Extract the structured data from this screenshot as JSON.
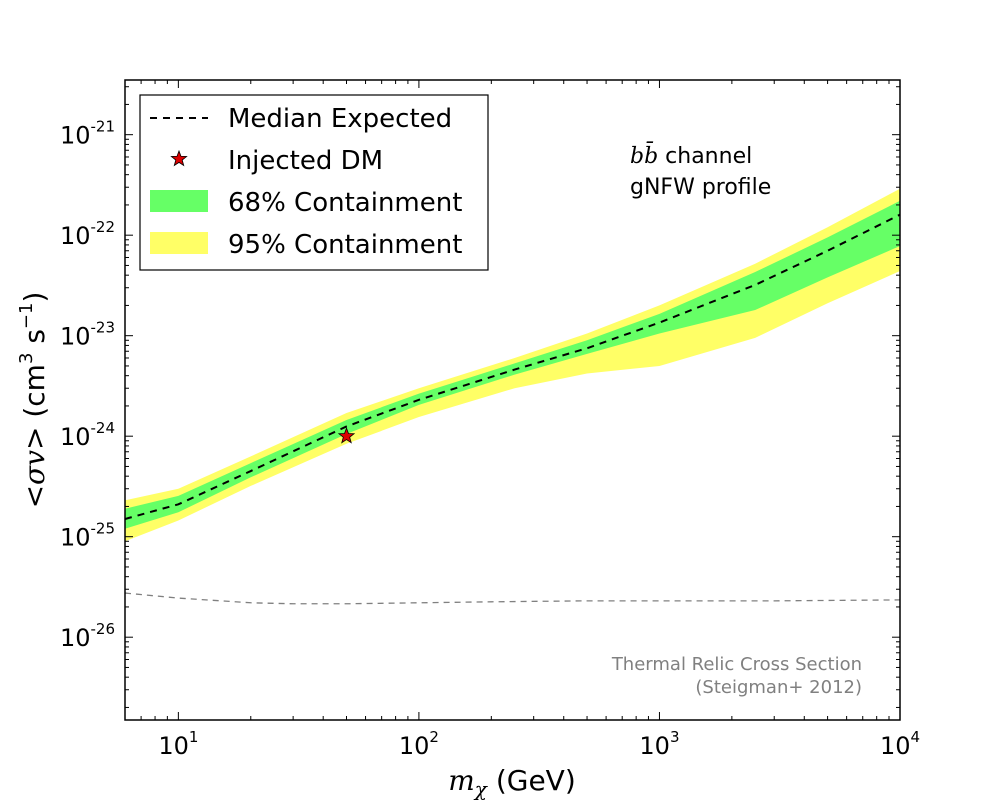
{
  "chart_data": {
    "type": "line",
    "x_scale": "log",
    "y_scale": "log",
    "xlim": [
      6,
      10000
    ],
    "ylim": [
      1.5e-27,
      3.5e-21
    ],
    "x_ticks": [
      {
        "base": "10",
        "exp": "1",
        "value": 10
      },
      {
        "base": "10",
        "exp": "2",
        "value": 100
      },
      {
        "base": "10",
        "exp": "3",
        "value": 1000
      },
      {
        "base": "10",
        "exp": "4",
        "value": 10000
      }
    ],
    "y_ticks": [
      {
        "base": "10",
        "exp": "-26",
        "value": 1e-26
      },
      {
        "base": "10",
        "exp": "-25",
        "value": 1e-25
      },
      {
        "base": "10",
        "exp": "-24",
        "value": 1e-24
      },
      {
        "base": "10",
        "exp": "-23",
        "value": 1e-23
      },
      {
        "base": "10",
        "exp": "-22",
        "value": 1e-22
      },
      {
        "base": "10",
        "exp": "-21",
        "value": 1e-21
      }
    ],
    "xlabel": {
      "symbol": "m",
      "sub": "χ",
      "unit": " (GeV)"
    },
    "ylabel": {
      "pre": "<",
      "symbol": "σv",
      "mid": "> (cm",
      "sup1": "3",
      "mid2": " s",
      "sup2": "−1",
      "post": ")"
    },
    "series": [
      {
        "name": "Median Expected",
        "style": "dashed",
        "color": "#000000",
        "x": [
          6,
          10,
          20,
          50,
          100,
          250,
          500,
          1000,
          2500,
          5000,
          10000
        ],
        "y": [
          1.5e-25,
          2.1e-25,
          4.5e-25,
          1.25e-24,
          2.3e-24,
          4.6e-24,
          7.5e-24,
          1.35e-23,
          3.2e-23,
          7e-23,
          1.6e-22
        ]
      },
      {
        "name": "Thermal Relic Cross Section",
        "style": "dashed",
        "color": "#808080",
        "x": [
          6,
          10,
          20,
          30,
          50,
          100,
          200,
          500,
          1000,
          3000,
          10000
        ],
        "y": [
          2.75e-26,
          2.45e-26,
          2.2e-26,
          2.15e-26,
          2.15e-26,
          2.2e-26,
          2.25e-26,
          2.3e-26,
          2.3e-26,
          2.3e-26,
          2.35e-26
        ]
      }
    ],
    "bands": [
      {
        "name": "95% Containment",
        "color": "#ffff66",
        "x": [
          6,
          10,
          20,
          50,
          100,
          250,
          500,
          1000,
          2500,
          5000,
          10000
        ],
        "upper": [
          2.3e-25,
          3e-25,
          6.3e-25,
          1.7e-24,
          3e-24,
          6e-24,
          1.05e-23,
          2e-23,
          5.2e-23,
          1.2e-22,
          2.9e-22
        ],
        "lower": [
          9e-26,
          1.45e-25,
          3.2e-25,
          8.4e-25,
          1.55e-24,
          3e-24,
          4.2e-24,
          5e-24,
          9.5e-24,
          2.1e-23,
          4.4e-23
        ]
      },
      {
        "name": "68% Containment",
        "color": "#66ff66",
        "x": [
          6,
          10,
          20,
          50,
          100,
          250,
          500,
          1000,
          2500,
          5000,
          10000
        ],
        "upper": [
          1.9e-25,
          2.55e-25,
          5.4e-25,
          1.45e-24,
          2.65e-24,
          5.3e-24,
          9e-24,
          1.65e-23,
          4.3e-23,
          9.5e-23,
          2.2e-22
        ],
        "lower": [
          1.2e-25,
          1.75e-25,
          3.9e-25,
          1.05e-24,
          2.05e-24,
          4.1e-24,
          6.6e-24,
          1.05e-23,
          1.8e-23,
          3.8e-23,
          7.8e-23
        ]
      }
    ],
    "markers": [
      {
        "name": "Injected DM",
        "x": 50,
        "y": 1e-24,
        "color": "#dd0000",
        "shape": "star"
      }
    ],
    "legend": {
      "position": "top-left",
      "entries": [
        {
          "label": "Median Expected",
          "kind": "dashed-line"
        },
        {
          "label": "Injected DM",
          "kind": "star"
        },
        {
          "label": "68% Containment",
          "kind": "patch",
          "color": "#66ff66"
        },
        {
          "label": "95% Containment",
          "kind": "patch",
          "color": "#ffff66"
        }
      ]
    },
    "annotations": {
      "channel_math": "bb̄",
      "channel_text": " channel",
      "profile": "gNFW profile",
      "thermal_line1": "Thermal Relic Cross Section",
      "thermal_line2": "(Steigman+ 2012)"
    }
  }
}
